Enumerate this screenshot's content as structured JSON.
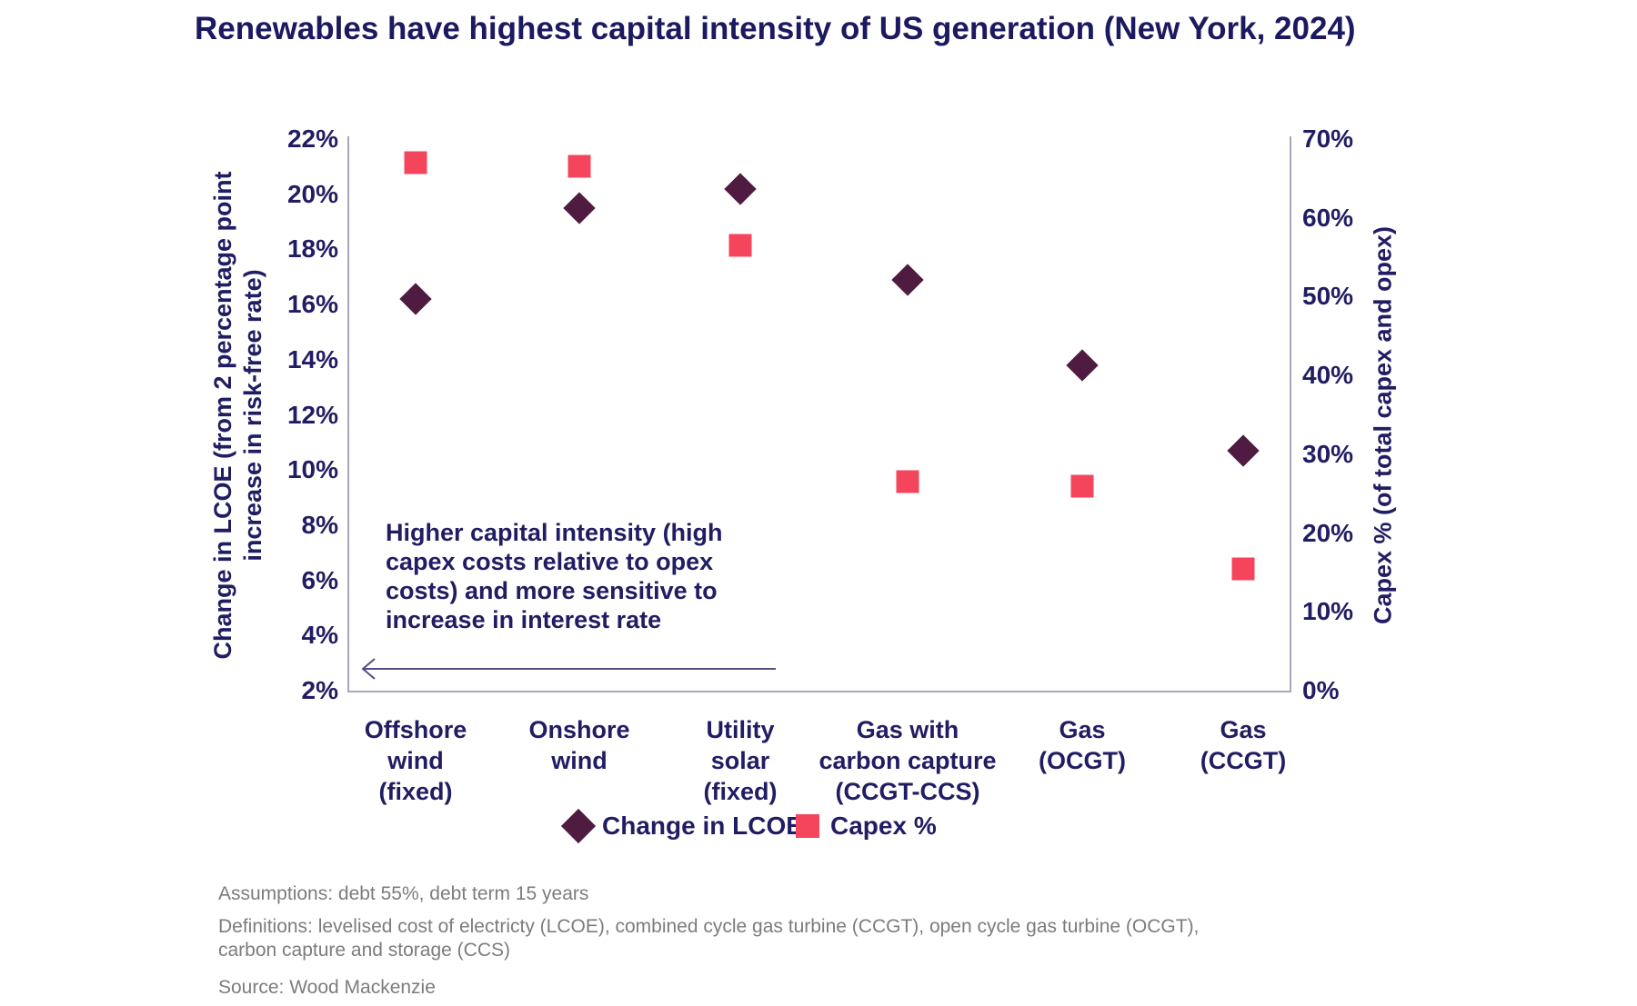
{
  "title": "Renewables have highest capital intensity of US generation (New York, 2024)",
  "chart_data": {
    "type": "scatter",
    "categories": [
      {
        "label": "Offshore\nwind\n(fixed)"
      },
      {
        "label": "Onshore\nwind"
      },
      {
        "label": "Utility\nsolar\n(fixed)"
      },
      {
        "label": "Gas with\ncarbon capture\n(CCGT-CCS)"
      },
      {
        "label": "Gas\n(OCGT)"
      },
      {
        "label": "Gas\n(CCGT)"
      }
    ],
    "series": [
      {
        "name": "Change in LCOE",
        "axis": "left",
        "marker": "diamond",
        "color": "#4f1b41",
        "values": [
          16.2,
          19.5,
          20.2,
          16.9,
          13.8,
          10.7
        ]
      },
      {
        "name": "Capex %",
        "axis": "right",
        "marker": "square",
        "color": "#f5455c",
        "values": [
          67,
          66.5,
          56.5,
          26.5,
          26,
          15.5
        ]
      }
    ],
    "left_axis": {
      "title": "Change in LCOE (from 2 percentage point\nincrease in risk-free rate)",
      "tick_labels": [
        "22%",
        "20%",
        "18%",
        "16%",
        "14%",
        "12%",
        "10%",
        "8%",
        "6%",
        "4%",
        "2%"
      ],
      "min": 2,
      "max": 22
    },
    "right_axis": {
      "title": "Capex % (of total capex and opex)",
      "tick_labels": [
        "70%",
        "60%",
        "50%",
        "40%",
        "30%",
        "20%",
        "10%",
        "0%"
      ],
      "min": 0,
      "max": 70
    },
    "annotation": "Higher capital intensity (high\ncapex costs relative to opex\ncosts) and more sensitive to\nincrease in interest rate",
    "grid": false,
    "legend_position": "bottom"
  },
  "footnotes": {
    "assumptions": "Assumptions: debt 55%, debt term 15 years",
    "definitions": "Definitions: levelised cost of electricty (LCOE), combined cycle gas turbine (CCGT), open cycle gas turbine (OCGT),\ncarbon capture and storage (CCS)",
    "source": "Source: Wood Mackenzie"
  },
  "colors": {
    "navy_text": "#211d63",
    "diamond": "#4f1b41",
    "square": "#f5455c",
    "axis_line": "#a7a7b8",
    "footnote_gray": "#7c7c7c"
  }
}
